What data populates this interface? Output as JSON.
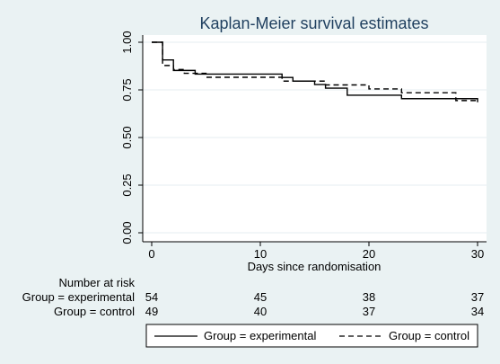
{
  "chart_data": {
    "type": "line",
    "title": "Kaplan-Meier survival estimates",
    "xlabel": "Days since randomisation",
    "ylabel": "",
    "xlim": [
      0,
      30
    ],
    "ylim": [
      0,
      1
    ],
    "x_ticks": [
      0,
      10,
      20,
      30
    ],
    "x_tick_labels": [
      "0",
      "10",
      "20",
      "30"
    ],
    "y_ticks": [
      0,
      0.25,
      0.5,
      0.75,
      1
    ],
    "y_tick_labels": [
      "0.00",
      "0.25",
      "0.50",
      "0.75",
      "1.00"
    ],
    "grid": "horizontal",
    "legend_placement": "bottom",
    "series": [
      {
        "name": "Group = experimental",
        "line_style": "solid",
        "color": "#000000",
        "x": [
          0,
          1,
          2,
          3,
          4,
          10,
          12,
          13,
          15,
          16,
          18,
          23,
          28,
          30
        ],
        "y": [
          1.0,
          0.907,
          0.852,
          0.852,
          0.833,
          0.833,
          0.815,
          0.796,
          0.778,
          0.759,
          0.722,
          0.704,
          0.704,
          0.685
        ]
      },
      {
        "name": "Group = control",
        "line_style": "dashed",
        "color": "#000000",
        "x": [
          0,
          1,
          2,
          3,
          5,
          10,
          12,
          16,
          20,
          23,
          28,
          30
        ],
        "y": [
          1.0,
          0.878,
          0.857,
          0.837,
          0.816,
          0.816,
          0.796,
          0.776,
          0.755,
          0.735,
          0.694,
          0.694
        ]
      }
    ],
    "risk_table": {
      "title": "Number at risk",
      "times": [
        0,
        10,
        20,
        30
      ],
      "rows": [
        {
          "label": "Group = experimental",
          "values": [
            "54",
            "45",
            "38",
            "37"
          ]
        },
        {
          "label": "Group = control",
          "values": [
            "49",
            "40",
            "37",
            "34"
          ]
        }
      ]
    }
  },
  "colors": {
    "background": "#eaf2f3",
    "plot_area": "#ffffff",
    "title": "#1f3f5f",
    "grid": "#e6eef0",
    "axis": "#000000"
  }
}
